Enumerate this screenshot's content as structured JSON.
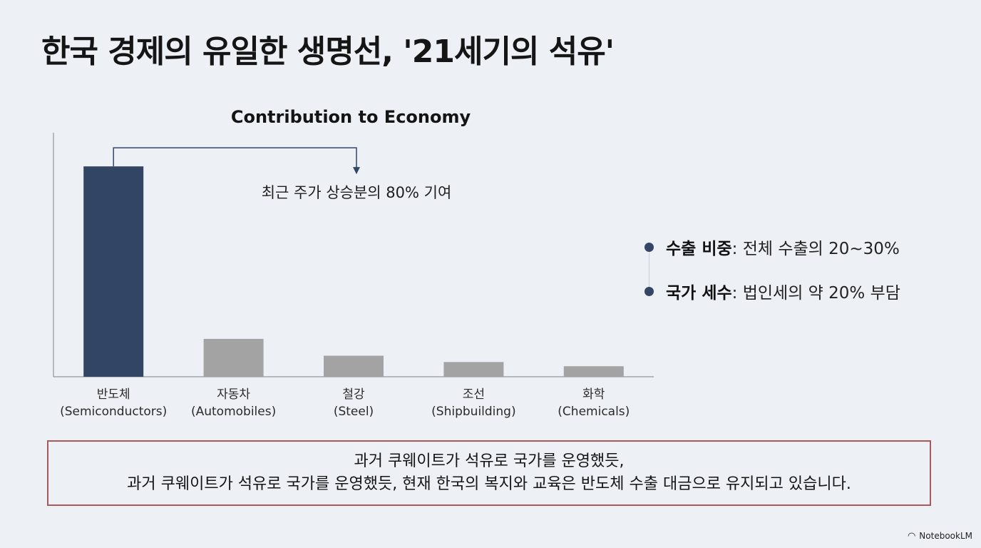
{
  "title": "한국 경제의 유일한 생명선, '21세기의 석유'",
  "chart_data": {
    "type": "bar",
    "title": "Contribution to Economy",
    "xlabel": "",
    "ylabel": "",
    "categories": [
      [
        "반도체",
        "(Semiconductors)"
      ],
      [
        "자동차",
        "(Automobiles)"
      ],
      [
        "철강",
        "(Steel)"
      ],
      [
        "조선",
        "(Shipbuilding)"
      ],
      [
        "화학",
        "(Chemicals)"
      ]
    ],
    "values": [
      100,
      18,
      10,
      7,
      5
    ],
    "ylim": [
      0,
      116
    ],
    "colors": {
      "highlight": "#334565",
      "other": "#a3a3a3",
      "axis": "#7d838c"
    },
    "annotation": "최근 주가 상승분의 80% 기여",
    "grid": false
  },
  "bullets": [
    {
      "label": "수출 비중",
      "text": ": 전체 수출의 20~30%"
    },
    {
      "label": "국가 세수",
      "text": ": 법인세의 약 20% 부담"
    }
  ],
  "callout": {
    "line1": "과거 쿠웨이트가 석유로 국가를 운영했듯,",
    "line2": "과거 쿠웨이트가 석유로 국가를 운영했듯, 현재 한국의 복지와 교육은 반도체 수출 대금으로 유지되고 있습니다."
  },
  "watermark": {
    "text": "NotebookLM",
    "icon": "notebooklm-logo-icon"
  }
}
